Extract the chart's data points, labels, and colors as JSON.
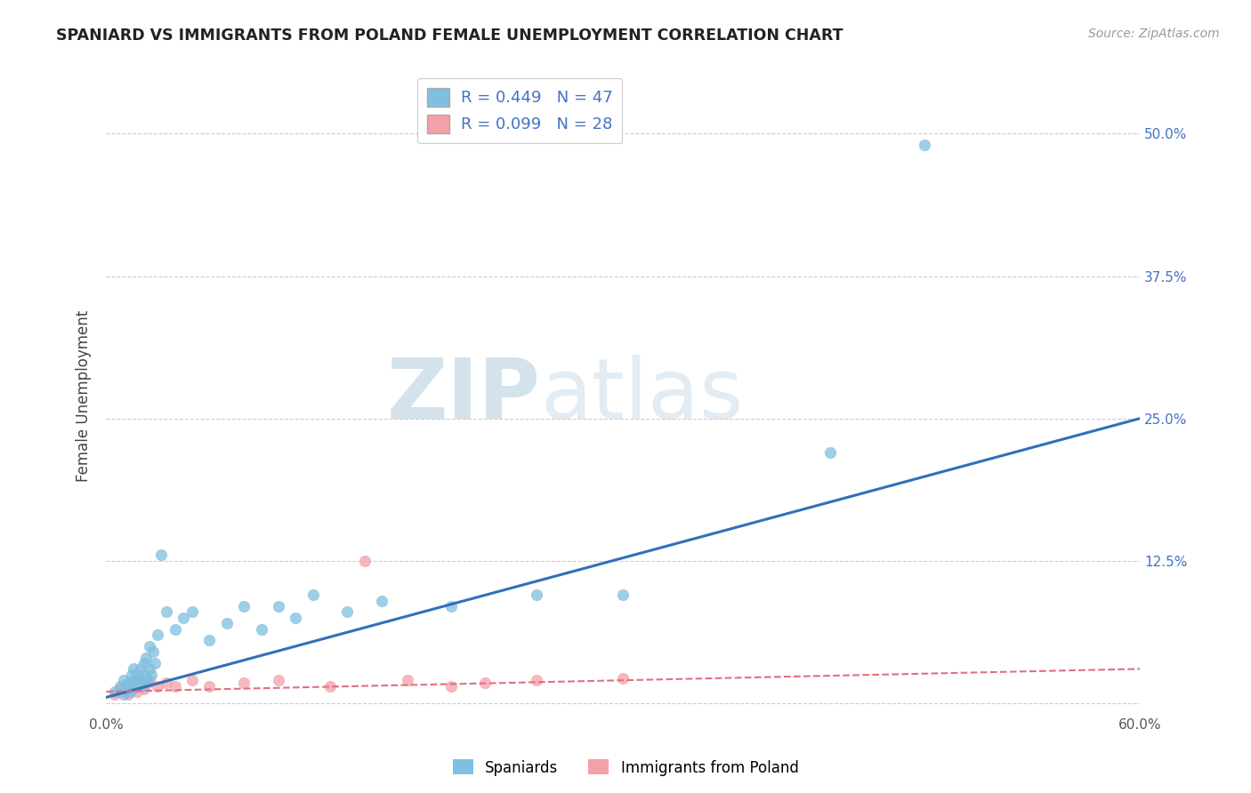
{
  "title": "SPANIARD VS IMMIGRANTS FROM POLAND FEMALE UNEMPLOYMENT CORRELATION CHART",
  "source": "Source: ZipAtlas.com",
  "ylabel": "Female Unemployment",
  "xlim": [
    0.0,
    0.6
  ],
  "ylim": [
    -0.01,
    0.55
  ],
  "xtick_positions": [
    0.0,
    0.1,
    0.2,
    0.3,
    0.4,
    0.5,
    0.6
  ],
  "xticklabels": [
    "0.0%",
    "",
    "",
    "",
    "",
    "",
    "60.0%"
  ],
  "ytick_positions": [
    0.0,
    0.125,
    0.25,
    0.375,
    0.5
  ],
  "ytick_labels": [
    "",
    "12.5%",
    "25.0%",
    "37.5%",
    "50.0%"
  ],
  "watermark_zip": "ZIP",
  "watermark_atlas": "atlas",
  "legend_r1": "R = 0.449",
  "legend_n1": "N = 47",
  "legend_r2": "R = 0.099",
  "legend_n2": "N = 28",
  "legend_label1": "Spaniards",
  "legend_label2": "Immigrants from Poland",
  "blue_color": "#7fbfdf",
  "pink_color": "#f4a0a8",
  "blue_line_color": "#3070b8",
  "pink_line_color": "#e07080",
  "title_color": "#222222",
  "source_color": "#999999",
  "axis_label_color": "#444444",
  "tick_label_color": "#4472c4",
  "grid_color": "#cccccc",
  "spaniard_x": [
    0.005,
    0.008,
    0.01,
    0.01,
    0.012,
    0.013,
    0.014,
    0.015,
    0.015,
    0.016,
    0.016,
    0.018,
    0.018,
    0.019,
    0.02,
    0.02,
    0.021,
    0.022,
    0.022,
    0.023,
    0.023,
    0.024,
    0.025,
    0.025,
    0.026,
    0.027,
    0.028,
    0.03,
    0.032,
    0.035,
    0.04,
    0.045,
    0.05,
    0.06,
    0.07,
    0.08,
    0.09,
    0.1,
    0.11,
    0.12,
    0.14,
    0.16,
    0.2,
    0.25,
    0.3,
    0.42,
    0.475
  ],
  "spaniard_y": [
    0.01,
    0.015,
    0.008,
    0.02,
    0.012,
    0.018,
    0.01,
    0.025,
    0.015,
    0.02,
    0.03,
    0.015,
    0.025,
    0.02,
    0.018,
    0.03,
    0.015,
    0.025,
    0.035,
    0.02,
    0.04,
    0.02,
    0.03,
    0.05,
    0.025,
    0.045,
    0.035,
    0.06,
    0.13,
    0.08,
    0.065,
    0.075,
    0.08,
    0.055,
    0.07,
    0.085,
    0.065,
    0.085,
    0.075,
    0.095,
    0.08,
    0.09,
    0.085,
    0.095,
    0.095,
    0.22,
    0.49
  ],
  "poland_x": [
    0.005,
    0.008,
    0.01,
    0.012,
    0.013,
    0.015,
    0.016,
    0.017,
    0.018,
    0.019,
    0.02,
    0.022,
    0.024,
    0.025,
    0.03,
    0.035,
    0.04,
    0.05,
    0.06,
    0.08,
    0.1,
    0.13,
    0.15,
    0.175,
    0.2,
    0.22,
    0.25,
    0.3
  ],
  "poland_y": [
    0.008,
    0.012,
    0.01,
    0.015,
    0.008,
    0.018,
    0.012,
    0.015,
    0.01,
    0.02,
    0.015,
    0.012,
    0.018,
    0.02,
    0.015,
    0.018,
    0.015,
    0.02,
    0.015,
    0.018,
    0.02,
    0.015,
    0.125,
    0.02,
    0.015,
    0.018,
    0.02,
    0.022
  ],
  "blue_trend": [
    0.0,
    0.6,
    0.005,
    0.25
  ],
  "pink_trend": [
    0.0,
    0.6,
    0.01,
    0.03
  ]
}
